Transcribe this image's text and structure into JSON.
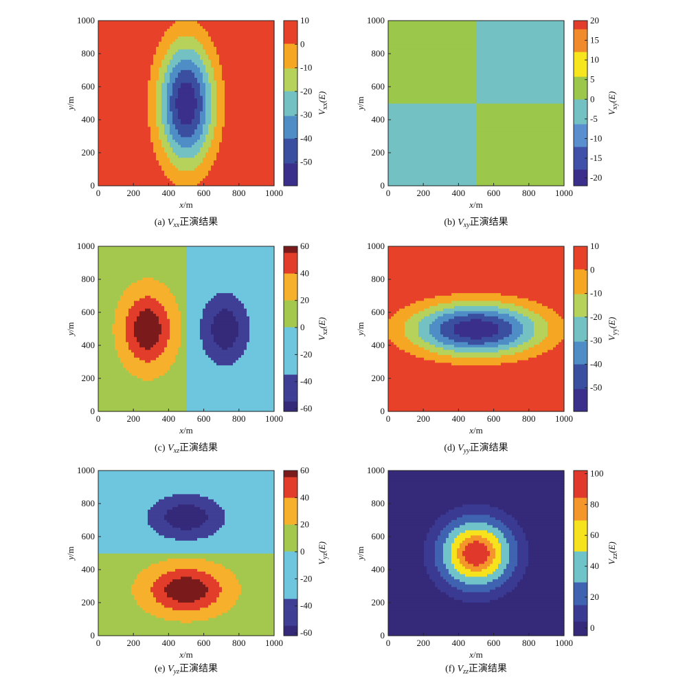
{
  "chart_data": [
    {
      "type": "heatmap",
      "subtype": "filled-contour",
      "id": "a",
      "caption_prefix": "(a) ",
      "caption_symbol": "V",
      "caption_subscript": "xx",
      "caption_suffix": "正演结果",
      "xlabel_var": "x",
      "xlabel_unit": "/m",
      "ylabel_var": "y",
      "ylabel_unit": "/m",
      "colorbar_label_var": "V",
      "colorbar_label_sub": "xx",
      "colorbar_label_unit": "(E)",
      "xlim": [
        0,
        1000
      ],
      "ylim": [
        0,
        1000
      ],
      "xticks": [
        0,
        200,
        400,
        600,
        800,
        1000
      ],
      "yticks": [
        0,
        200,
        400,
        600,
        800,
        1000
      ],
      "clim": [
        -60,
        10
      ],
      "cticks": [
        10,
        0,
        -10,
        -20,
        -30,
        -40,
        -50
      ],
      "field": "xx",
      "levels": [
        -50,
        -40,
        -30,
        -20,
        -10,
        0
      ],
      "colors": [
        "#3b2f8c",
        "#3b4fa0",
        "#4e8dc6",
        "#74c1c4",
        "#b7d25a",
        "#f5a623",
        "#e8412a",
        "#7a1a1a"
      ]
    },
    {
      "type": "heatmap",
      "subtype": "filled-contour",
      "id": "b",
      "caption_prefix": "(b) ",
      "caption_symbol": "V",
      "caption_subscript": "xy",
      "caption_suffix": "正演结果",
      "xlabel_var": "x",
      "xlabel_unit": "/m",
      "ylabel_var": "y",
      "ylabel_unit": "/m",
      "colorbar_label_var": "V",
      "colorbar_label_sub": "xy",
      "colorbar_label_unit": "(E)",
      "xlim": [
        0,
        1000
      ],
      "ylim": [
        0,
        1000
      ],
      "xticks": [
        0,
        200,
        400,
        600,
        800,
        1000
      ],
      "yticks": [
        0,
        200,
        400,
        600,
        800,
        1000
      ],
      "clim": [
        -22,
        20
      ],
      "cticks": [
        20,
        15,
        10,
        5,
        0,
        -5,
        -10,
        -15,
        -20
      ],
      "field": "xy",
      "levels": [
        -18,
        -12,
        -6,
        0,
        6,
        12,
        18
      ],
      "colors": [
        "#3b2f8c",
        "#3f51a8",
        "#5a8fcf",
        "#74c1c4",
        "#9bc74a",
        "#f7e51e",
        "#f08a2a",
        "#e23c2a",
        "#7a1a1a"
      ]
    },
    {
      "type": "heatmap",
      "subtype": "filled-contour",
      "id": "c",
      "caption_prefix": "(c) ",
      "caption_symbol": "V",
      "caption_subscript": "xz",
      "caption_suffix": "正演结果",
      "xlabel_var": "x",
      "xlabel_unit": "/m",
      "ylabel_var": "y",
      "ylabel_unit": "/m",
      "colorbar_label_var": "V",
      "colorbar_label_sub": "xz",
      "colorbar_label_unit": "(E)",
      "xlim": [
        0,
        1000
      ],
      "ylim": [
        0,
        1000
      ],
      "xticks": [
        0,
        200,
        400,
        600,
        800,
        1000
      ],
      "yticks": [
        0,
        200,
        400,
        600,
        800,
        1000
      ],
      "clim": [
        -62,
        60
      ],
      "cticks": [
        60,
        40,
        20,
        0,
        -20,
        -40,
        -60
      ],
      "field": "xz",
      "levels": [
        -55,
        -35,
        0,
        20,
        40,
        55
      ],
      "colors": [
        "#35297a",
        "#3f3f96",
        "#6ec6de",
        "#a4c84e",
        "#f7b02c",
        "#e23c2a",
        "#7a1a1a"
      ]
    },
    {
      "type": "heatmap",
      "subtype": "filled-contour",
      "id": "d",
      "caption_prefix": "(d) ",
      "caption_symbol": "V",
      "caption_subscript": "yy",
      "caption_suffix": "正演结果",
      "xlabel_var": "x",
      "xlabel_unit": "/m",
      "ylabel_var": "y",
      "ylabel_unit": "/m",
      "colorbar_label_var": "V",
      "colorbar_label_sub": "yy",
      "colorbar_label_unit": "(E)",
      "xlim": [
        0,
        1000
      ],
      "ylim": [
        0,
        1000
      ],
      "xticks": [
        0,
        200,
        400,
        600,
        800,
        1000
      ],
      "yticks": [
        0,
        200,
        400,
        600,
        800,
        1000
      ],
      "clim": [
        -60,
        10
      ],
      "cticks": [
        10,
        0,
        -10,
        -20,
        -30,
        -40,
        -50
      ],
      "field": "yy",
      "levels": [
        -50,
        -40,
        -30,
        -20,
        -10,
        0
      ],
      "colors": [
        "#3b2f8c",
        "#3b4fa0",
        "#4e8dc6",
        "#74c1c4",
        "#b7d25a",
        "#f5a623",
        "#e8412a",
        "#7a1a1a"
      ]
    },
    {
      "type": "heatmap",
      "subtype": "filled-contour",
      "id": "e",
      "caption_prefix": "(e) ",
      "caption_symbol": "V",
      "caption_subscript": "yz",
      "caption_suffix": "正演结果",
      "xlabel_var": "x",
      "xlabel_unit": "/m",
      "ylabel_var": "y",
      "ylabel_unit": "/m",
      "colorbar_label_var": "V",
      "colorbar_label_sub": "yz",
      "colorbar_label_unit": "(E)",
      "xlim": [
        0,
        1000
      ],
      "ylim": [
        0,
        1000
      ],
      "xticks": [
        0,
        200,
        400,
        600,
        800,
        1000
      ],
      "yticks": [
        0,
        200,
        400,
        600,
        800,
        1000
      ],
      "clim": [
        -62,
        60
      ],
      "cticks": [
        60,
        40,
        20,
        0,
        -20,
        -40,
        -60
      ],
      "field": "yz",
      "levels": [
        -55,
        -35,
        0,
        20,
        40,
        55
      ],
      "colors": [
        "#35297a",
        "#3f3f96",
        "#6ec6de",
        "#a4c84e",
        "#f7b02c",
        "#e23c2a",
        "#7a1a1a"
      ]
    },
    {
      "type": "heatmap",
      "subtype": "filled-contour",
      "id": "f",
      "caption_prefix": "(f) ",
      "caption_symbol": "V",
      "caption_subscript": "zz",
      "caption_suffix": "正演结果",
      "xlabel_var": "x",
      "xlabel_unit": "/m",
      "ylabel_var": "y",
      "ylabel_unit": "/m",
      "colorbar_label_var": "V",
      "colorbar_label_sub": "zz",
      "colorbar_label_unit": "(E)",
      "xlim": [
        0,
        1000
      ],
      "ylim": [
        0,
        1000
      ],
      "xticks": [
        0,
        200,
        400,
        600,
        800,
        1000
      ],
      "yticks": [
        0,
        200,
        400,
        600,
        800,
        1000
      ],
      "clim": [
        -5,
        102
      ],
      "cticks": [
        100,
        80,
        60,
        40,
        20,
        0
      ],
      "field": "zz",
      "levels": [
        5,
        15,
        30,
        50,
        70,
        85
      ],
      "colors": [
        "#35297a",
        "#3a3a92",
        "#3f63b0",
        "#6fc3c9",
        "#f7e21e",
        "#f4962a",
        "#e0382a",
        "#7a1a1a"
      ]
    }
  ]
}
